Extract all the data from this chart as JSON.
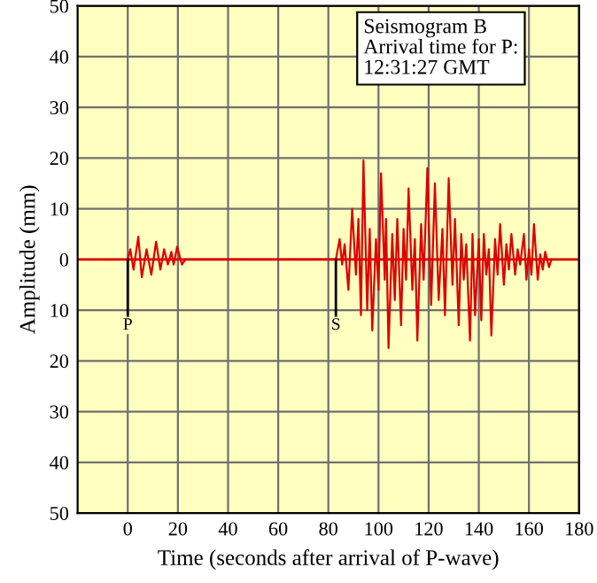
{
  "chart_data": {
    "type": "line",
    "xlabel": "Time (seconds after arrival of P-wave)",
    "ylabel": "Amplitude (mm)",
    "xlim": [
      -20,
      180
    ],
    "xticks": [
      0,
      20,
      40,
      60,
      80,
      100,
      120,
      140,
      160,
      180
    ],
    "ylim": [
      -50,
      50
    ],
    "yticks": [
      {
        "value": -50,
        "label": "50"
      },
      {
        "value": -40,
        "label": "40"
      },
      {
        "value": -30,
        "label": "30"
      },
      {
        "value": -20,
        "label": "20"
      },
      {
        "value": -10,
        "label": "10"
      },
      0,
      10,
      20,
      30,
      40,
      50
    ],
    "grid": true,
    "marker": "none",
    "line_style": "solid",
    "ref_lines": [
      {
        "axis": "y",
        "value": 0,
        "color": "#dd0000"
      }
    ],
    "annotations": [
      {
        "text": "P",
        "x": 0,
        "y": 0
      },
      {
        "text": "S",
        "x": 83,
        "y": 0
      },
      "Seismogram B\nArrival time for P:\n12:31:27 GMT"
    ],
    "series": [
      {
        "color": "#dd0000",
        "x": [
          0,
          1,
          2.3,
          4.2,
          5.6,
          7.5,
          9.4,
          11.3,
          13,
          14.5,
          16,
          17.4,
          18.3,
          19.7,
          21.6,
          23,
          83,
          84.5,
          85.5,
          86.5,
          88,
          89.5,
          91,
          92,
          93,
          94,
          95.5,
          96.5,
          97.5,
          99,
          100,
          101,
          102.5,
          103,
          104,
          105.5,
          106.5,
          107.5,
          109,
          110,
          111,
          112,
          113.5,
          114.5,
          115.5,
          117,
          118,
          119.5,
          121,
          122.5,
          124,
          125.5,
          126.5,
          128,
          129.5,
          130.5,
          132,
          133,
          134,
          135,
          136.5,
          137.5,
          138.5,
          140,
          141,
          142,
          143,
          144,
          145,
          146.5,
          147.5,
          148.5,
          150,
          151,
          152,
          153,
          154.5,
          155.5,
          156.5,
          158,
          159,
          160,
          161,
          162,
          163.5,
          164.5,
          165.5,
          166.5,
          168,
          169
        ],
        "values": [
          0,
          2,
          -2,
          4.5,
          -3.5,
          2,
          -3,
          3.5,
          -2,
          2,
          -1,
          1.5,
          -1,
          2.5,
          -1,
          0,
          0,
          4,
          -1,
          3,
          -6,
          10,
          -3,
          8,
          -11,
          19.5,
          -10,
          6,
          -14,
          4,
          -6,
          17,
          -4,
          8,
          -17.5,
          5,
          -8,
          8,
          -13,
          6,
          -4,
          14,
          -6,
          4,
          -16,
          7,
          -4,
          18,
          -9,
          15,
          -8,
          6,
          -11,
          16,
          -5,
          8,
          -13,
          5,
          -4,
          3,
          -16,
          5,
          -11,
          4,
          -12,
          5,
          -3,
          2,
          -15,
          4,
          -3,
          7,
          -5,
          3,
          -2,
          5,
          -3,
          2,
          -1,
          5,
          -4,
          2,
          -3,
          7,
          -4,
          1,
          -2,
          1.5,
          -1.5,
          0
        ]
      }
    ]
  }
}
